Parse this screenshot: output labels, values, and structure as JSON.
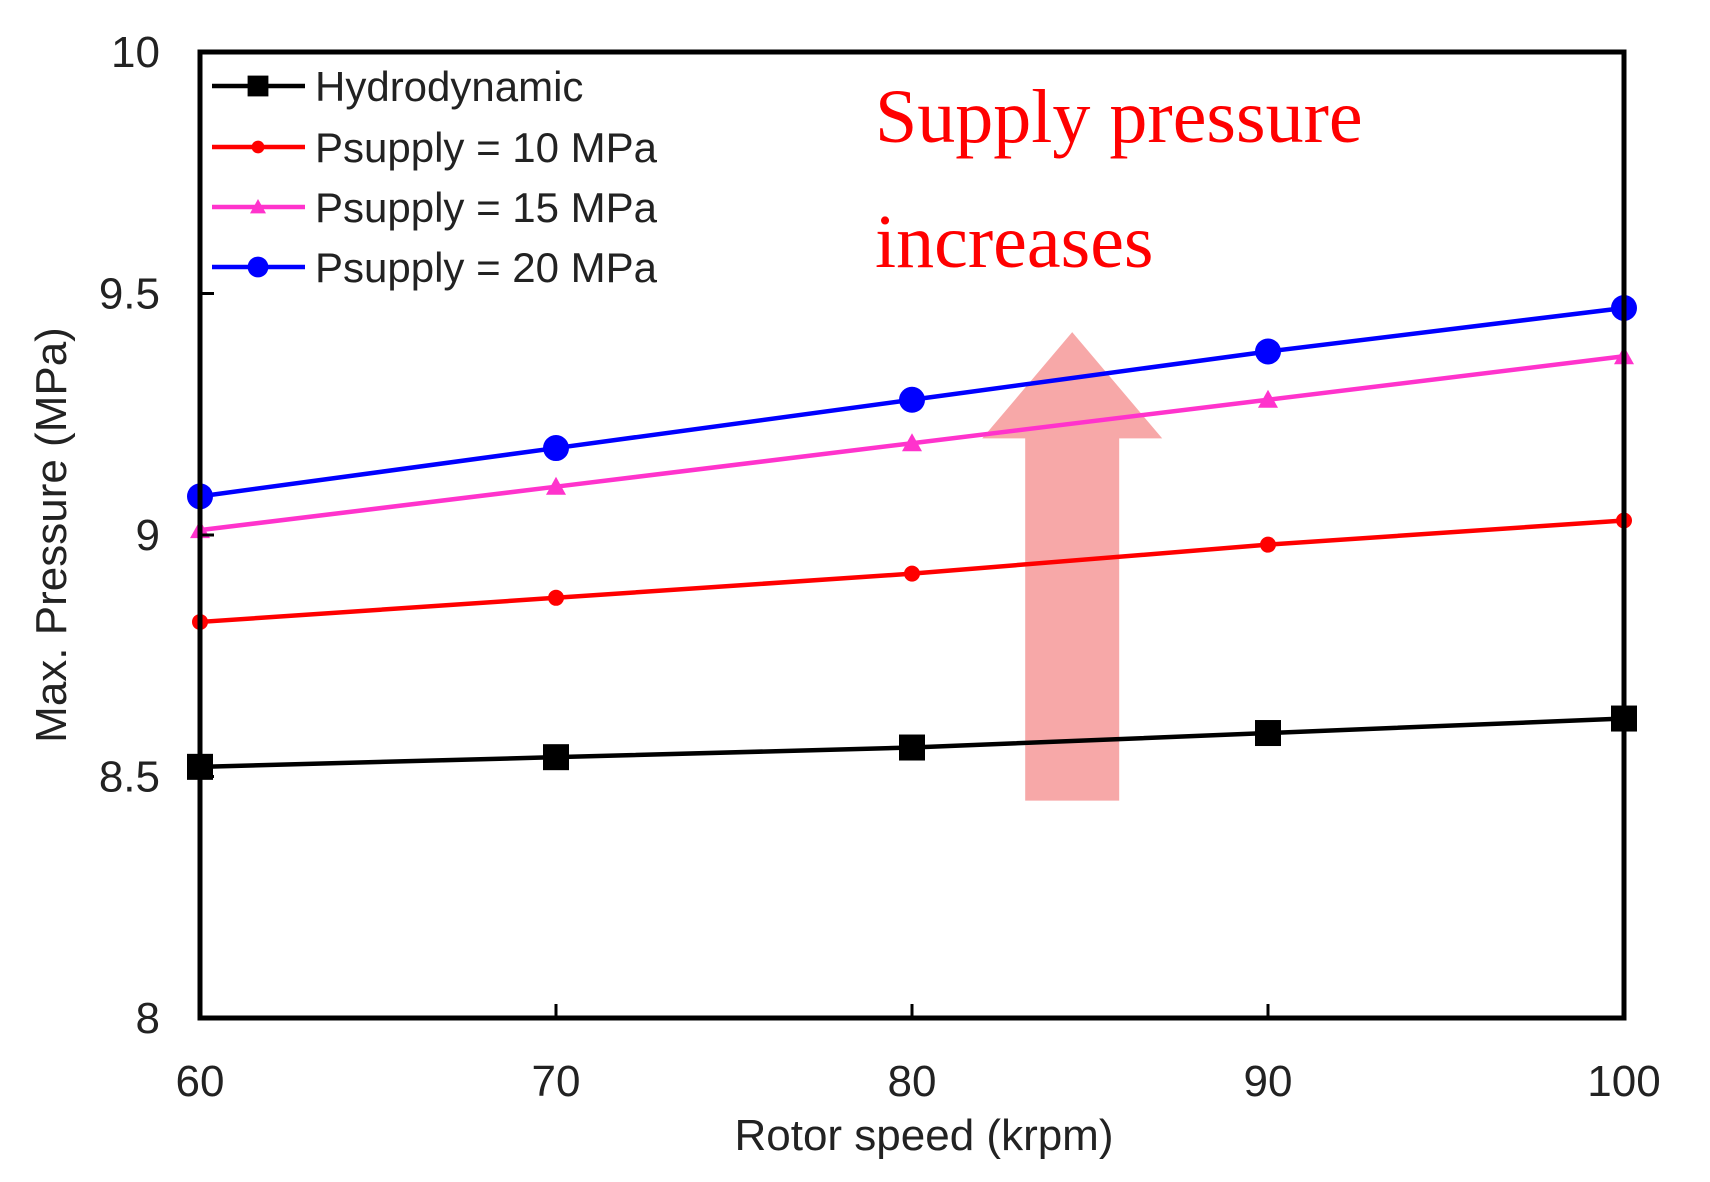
{
  "chart_data": {
    "type": "line",
    "title": "",
    "xlabel": "Rotor speed (krpm)",
    "ylabel": "Max. Pressure (MPa)",
    "xlim": [
      60,
      100
    ],
    "ylim": [
      8,
      10
    ],
    "x": [
      60,
      70,
      80,
      90,
      100
    ],
    "x_tick_labels": [
      "60",
      "70",
      "80",
      "90",
      "100"
    ],
    "y_ticks": [
      8,
      8.5,
      9,
      9.5,
      10
    ],
    "y_tick_labels": [
      "8",
      "8.5",
      "9",
      "9.5",
      "10"
    ],
    "grid": false,
    "legend_position": "top-left",
    "series": [
      {
        "name": "Hydrodynamic",
        "color": "#000000",
        "marker": "square",
        "values": [
          8.52,
          8.54,
          8.56,
          8.59,
          8.62
        ]
      },
      {
        "name": "Psupply = 10 MPa",
        "color": "#ff0000",
        "marker": "dot",
        "values": [
          8.82,
          8.87,
          8.92,
          8.98,
          9.03
        ]
      },
      {
        "name": "Psupply = 15 MPa",
        "color": "#ff33cc",
        "marker": "triangle",
        "values": [
          9.01,
          9.1,
          9.19,
          9.28,
          9.37
        ]
      },
      {
        "name": "Psupply = 20 MPa",
        "color": "#0000ff",
        "marker": "circle",
        "values": [
          9.08,
          9.18,
          9.28,
          9.38,
          9.47
        ]
      }
    ],
    "annotation": {
      "lines": [
        "Supply pressure",
        "increases"
      ],
      "text_color": "#ff0000",
      "arrow_color": "#f7a8a8",
      "arrow_direction": "up"
    }
  }
}
